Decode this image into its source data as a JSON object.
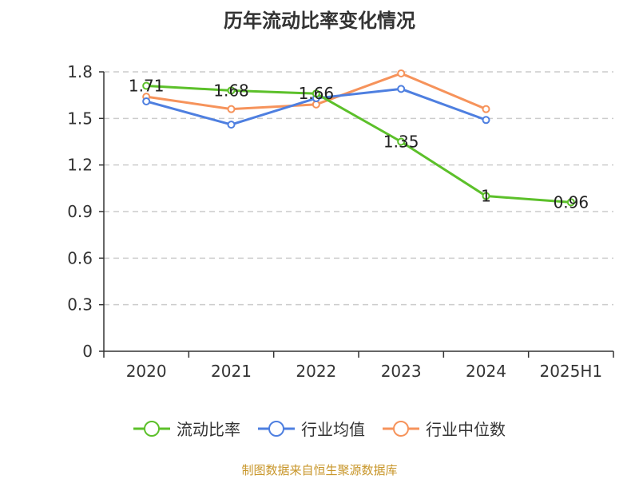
{
  "chart_data": {
    "type": "line",
    "title": "历年流动比率变化情况",
    "categories": [
      "2020",
      "2021",
      "2022",
      "2023",
      "2024",
      "2025H1"
    ],
    "y_ticks": [
      "0",
      "0.3",
      "0.6",
      "0.9",
      "1.2",
      "1.5",
      "1.8"
    ],
    "ylim": [
      0,
      1.8
    ],
    "grid": true,
    "legend_position": "bottom",
    "series": [
      {
        "name": "流动比率",
        "color": "#5cc02a",
        "values": [
          1.71,
          1.68,
          1.66,
          1.35,
          1.0,
          0.96
        ],
        "labels": [
          "1.71",
          "1.68",
          "1.66",
          "1.35",
          "1",
          "0.96"
        ]
      },
      {
        "name": "行业均值",
        "color": "#4e7fe0",
        "values": [
          1.61,
          1.46,
          1.63,
          1.69,
          1.49,
          null
        ]
      },
      {
        "name": "行业中位数",
        "color": "#f6935b",
        "values": [
          1.64,
          1.56,
          1.59,
          1.79,
          1.56,
          null
        ]
      }
    ]
  },
  "source_text": "制图数据来自恒生聚源数据库",
  "source_color": "#c8962a"
}
